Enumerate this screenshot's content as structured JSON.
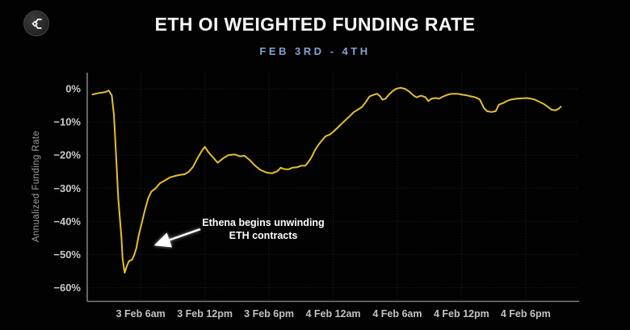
{
  "header": {
    "title": "ETH OI WEIGHTED FUNDING RATE",
    "subtitle": "FEB 3RD - 4TH",
    "logo_glyph": "sigma-diamond-mark"
  },
  "colors": {
    "background": "#020202",
    "line": "#e4c02c",
    "title": "#f8f8f8",
    "subtitle": "#87a2cf",
    "axis": "#7d7d7d",
    "tick_label": "#c6c6c6",
    "annotation": "#ffffff"
  },
  "chart_data": {
    "type": "line",
    "title": "ETH OI WEIGHTED FUNDING RATE",
    "subtitle": "FEB 3RD - 4TH",
    "xlabel": "",
    "ylabel": "Annualized Funding Rate",
    "x_unit": "hours since 3 Feb 12am",
    "xlim": [
      1,
      47
    ],
    "ylim": [
      -64,
      5
    ],
    "grid": true,
    "legend": "none",
    "y_ticks": [
      {
        "v": 0,
        "label": "0%"
      },
      {
        "v": -10,
        "label": "−10%"
      },
      {
        "v": -20,
        "label": "−20%"
      },
      {
        "v": -30,
        "label": "−30%"
      },
      {
        "v": -40,
        "label": "−40%"
      },
      {
        "v": -50,
        "label": "−50%"
      },
      {
        "v": -60,
        "label": "−60%"
      }
    ],
    "x_ticks": [
      {
        "v": 6,
        "label": "3 Feb 6am"
      },
      {
        "v": 12,
        "label": "3 Feb 12pm"
      },
      {
        "v": 18,
        "label": "3 Feb 6pm"
      },
      {
        "v": 24,
        "label": "4 Feb 12am"
      },
      {
        "v": 30,
        "label": "4 Feb 6am"
      },
      {
        "v": 36,
        "label": "4 Feb 12pm"
      },
      {
        "v": 42,
        "label": "4 Feb 6pm"
      }
    ],
    "series": [
      {
        "name": "ETH OI weighted funding rate (annualized %)",
        "color": "#e4c02c",
        "points": [
          [
            1.5,
            -1.7
          ],
          [
            2.1,
            -1.3
          ],
          [
            2.7,
            -1.0
          ],
          [
            3.0,
            -0.5
          ],
          [
            3.3,
            -2.0
          ],
          [
            3.5,
            -8.0
          ],
          [
            3.7,
            -20.0
          ],
          [
            3.9,
            -33.0
          ],
          [
            4.2,
            -45.0
          ],
          [
            4.3,
            -51.0
          ],
          [
            4.5,
            -55.5
          ],
          [
            4.7,
            -53.5
          ],
          [
            4.9,
            -52.0
          ],
          [
            5.2,
            -51.5
          ],
          [
            5.4,
            -50.0
          ],
          [
            5.6,
            -48.0
          ],
          [
            5.8,
            -44.5
          ],
          [
            6.1,
            -40.5
          ],
          [
            6.4,
            -36.5
          ],
          [
            6.7,
            -33.0
          ],
          [
            7.0,
            -31.0
          ],
          [
            7.4,
            -30.0
          ],
          [
            7.8,
            -28.5
          ],
          [
            8.3,
            -27.6
          ],
          [
            8.7,
            -26.8
          ],
          [
            9.2,
            -26.3
          ],
          [
            9.6,
            -26.0
          ],
          [
            10.1,
            -25.8
          ],
          [
            10.5,
            -25.0
          ],
          [
            10.9,
            -23.5
          ],
          [
            11.3,
            -21.0
          ],
          [
            11.7,
            -18.8
          ],
          [
            12.0,
            -17.5
          ],
          [
            12.3,
            -19.0
          ],
          [
            12.8,
            -20.8
          ],
          [
            13.2,
            -22.3
          ],
          [
            13.7,
            -21.0
          ],
          [
            14.2,
            -20.0
          ],
          [
            14.8,
            -19.8
          ],
          [
            15.3,
            -20.4
          ],
          [
            15.7,
            -20.2
          ],
          [
            16.2,
            -21.5
          ],
          [
            16.7,
            -23.2
          ],
          [
            17.2,
            -24.5
          ],
          [
            17.8,
            -25.3
          ],
          [
            18.3,
            -25.5
          ],
          [
            18.8,
            -24.8
          ],
          [
            19.1,
            -23.8
          ],
          [
            19.4,
            -24.2
          ],
          [
            19.8,
            -24.3
          ],
          [
            20.2,
            -23.8
          ],
          [
            20.6,
            -23.7
          ],
          [
            21.0,
            -23.2
          ],
          [
            21.4,
            -23.2
          ],
          [
            21.7,
            -22.0
          ],
          [
            22.0,
            -20.5
          ],
          [
            22.3,
            -18.5
          ],
          [
            22.6,
            -17.0
          ],
          [
            22.9,
            -15.8
          ],
          [
            23.3,
            -14.3
          ],
          [
            23.7,
            -13.8
          ],
          [
            24.0,
            -13.0
          ],
          [
            24.4,
            -11.8
          ],
          [
            24.8,
            -10.5
          ],
          [
            25.2,
            -9.3
          ],
          [
            25.6,
            -8.1
          ],
          [
            25.9,
            -7.1
          ],
          [
            26.3,
            -6.3
          ],
          [
            26.7,
            -5.5
          ],
          [
            27.1,
            -3.8
          ],
          [
            27.4,
            -2.3
          ],
          [
            27.8,
            -1.8
          ],
          [
            28.1,
            -1.5
          ],
          [
            28.4,
            -2.3
          ],
          [
            28.6,
            -3.3
          ],
          [
            28.9,
            -3.0
          ],
          [
            29.2,
            -1.8
          ],
          [
            29.6,
            -0.6
          ],
          [
            29.9,
            0.0
          ],
          [
            30.3,
            0.3
          ],
          [
            30.7,
            0.0
          ],
          [
            31.1,
            -0.8
          ],
          [
            31.5,
            -2.0
          ],
          [
            31.8,
            -2.6
          ],
          [
            32.2,
            -2.1
          ],
          [
            32.6,
            -2.5
          ],
          [
            32.9,
            -3.7
          ],
          [
            33.2,
            -3.0
          ],
          [
            33.6,
            -2.8
          ],
          [
            33.9,
            -3.0
          ],
          [
            34.3,
            -2.3
          ],
          [
            34.7,
            -1.8
          ],
          [
            35.1,
            -1.5
          ],
          [
            35.6,
            -1.5
          ],
          [
            36.1,
            -1.8
          ],
          [
            36.5,
            -2.0
          ],
          [
            36.9,
            -2.3
          ],
          [
            37.3,
            -2.6
          ],
          [
            37.7,
            -3.2
          ],
          [
            38.1,
            -5.8
          ],
          [
            38.4,
            -6.8
          ],
          [
            38.8,
            -7.0
          ],
          [
            39.2,
            -6.8
          ],
          [
            39.5,
            -4.8
          ],
          [
            39.9,
            -4.3
          ],
          [
            40.3,
            -3.6
          ],
          [
            40.7,
            -3.2
          ],
          [
            41.2,
            -3.0
          ],
          [
            41.6,
            -2.9
          ],
          [
            42.1,
            -2.8
          ],
          [
            42.5,
            -3.0
          ],
          [
            42.9,
            -3.3
          ],
          [
            43.3,
            -4.0
          ],
          [
            43.7,
            -4.6
          ],
          [
            44.1,
            -5.5
          ],
          [
            44.4,
            -6.3
          ],
          [
            44.8,
            -6.5
          ],
          [
            45.1,
            -6.0
          ],
          [
            45.3,
            -5.4
          ]
        ]
      }
    ],
    "annotation": {
      "lines": [
        "Ethena begins unwinding",
        "ETH contracts"
      ]
    }
  }
}
